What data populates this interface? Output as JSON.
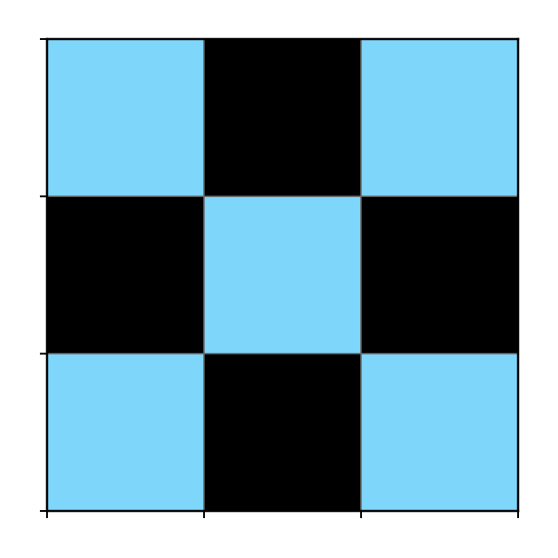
{
  "chart_data": {
    "type": "heatmap",
    "title": "",
    "xlabel": "",
    "ylabel": "",
    "rows": 3,
    "cols": 3,
    "values": [
      [
        1,
        0,
        1
      ],
      [
        0,
        1,
        0
      ],
      [
        1,
        0,
        1
      ]
    ],
    "colors": {
      "1": "#7fd6fb",
      "0": "#000000"
    },
    "cell_border_color": "#666666",
    "axis_color": "#000000",
    "grid": false
  }
}
